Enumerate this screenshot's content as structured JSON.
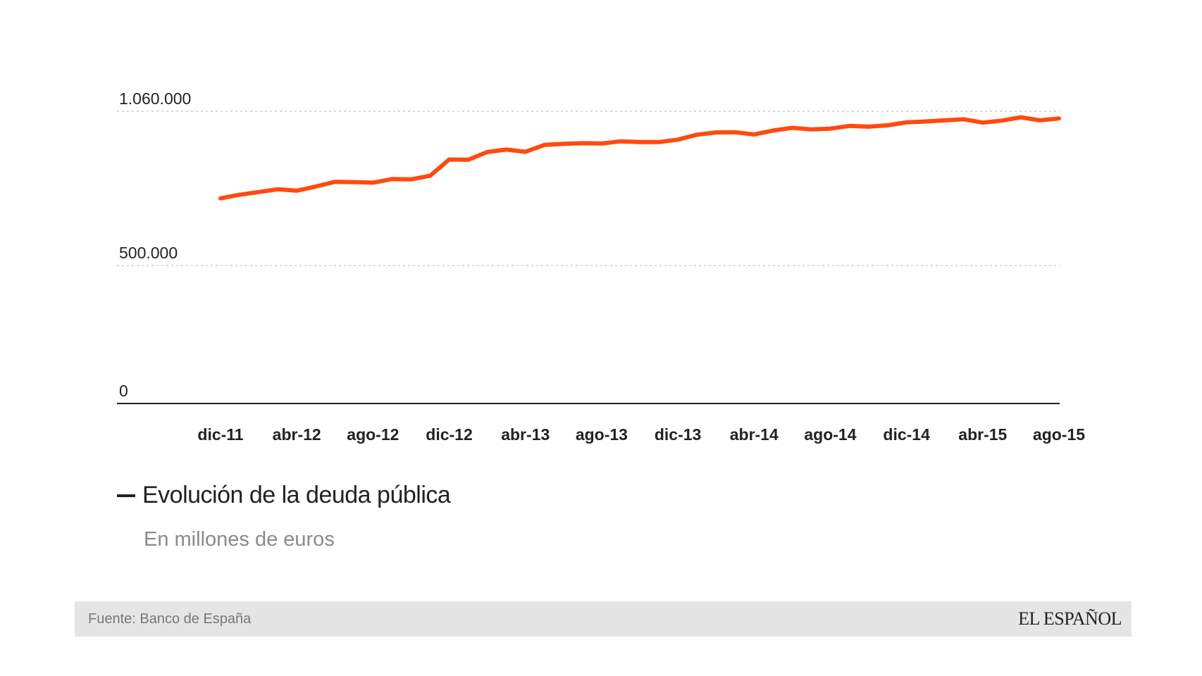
{
  "chart_data": {
    "type": "line",
    "title": "Evolución de la deuda pública",
    "subtitle": "En millones de euros",
    "ylim": [
      0,
      1060000
    ],
    "y_ticks": [
      0,
      500000,
      1060000
    ],
    "y_tick_labels": [
      "0",
      "500.000",
      "1.060.000"
    ],
    "x_tick_labels": [
      "dic-11",
      "abr-12",
      "ago-12",
      "dic-12",
      "abr-13",
      "ago-13",
      "dic-13",
      "abr-14",
      "ago-14",
      "dic-14",
      "abr-15",
      "ago-15"
    ],
    "grid": "horizontal dotted",
    "line_color": "#ff4a0f",
    "series": [
      {
        "name": "Evolución de la deuda pública",
        "x": [
          "dic-11",
          "ene-12",
          "feb-12",
          "mar-12",
          "abr-12",
          "may-12",
          "jun-12",
          "jul-12",
          "ago-12",
          "sep-12",
          "oct-12",
          "nov-12",
          "dic-12",
          "ene-13",
          "feb-13",
          "mar-13",
          "abr-13",
          "may-13",
          "jun-13",
          "jul-13",
          "ago-13",
          "sep-13",
          "oct-13",
          "nov-13",
          "dic-13",
          "ene-14",
          "feb-14",
          "mar-14",
          "abr-14",
          "may-14",
          "jun-14",
          "jul-14",
          "ago-14",
          "sep-14",
          "oct-14",
          "nov-14",
          "dic-14",
          "ene-15",
          "feb-15",
          "mar-15",
          "abr-15",
          "may-15",
          "jun-15",
          "jul-15",
          "ago-15"
        ],
        "values": [
          744000,
          757000,
          767000,
          777000,
          772000,
          787000,
          804000,
          803000,
          801000,
          814000,
          813000,
          826000,
          885000,
          884000,
          912000,
          921000,
          913000,
          938000,
          942000,
          944000,
          943000,
          951000,
          948000,
          948000,
          957000,
          975000,
          983000,
          984000,
          976000,
          990000,
          1000000,
          994000,
          997000,
          1007000,
          1004000,
          1009000,
          1020000,
          1023000,
          1027000,
          1031000,
          1019000,
          1026000,
          1038000,
          1027000,
          1034000
        ]
      }
    ]
  },
  "footer": {
    "source": "Fuente: Banco de España",
    "brand": "EL ESPAÑOL"
  }
}
